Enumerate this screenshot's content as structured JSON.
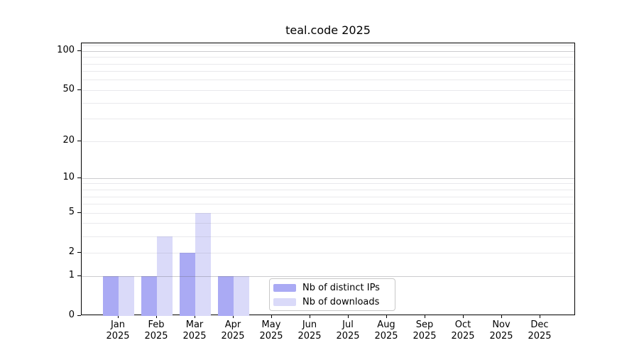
{
  "chart_data": {
    "type": "bar",
    "title": "teal.code 2025",
    "categories": [
      "Jan",
      "Feb",
      "Mar",
      "Apr",
      "May",
      "Jun",
      "Jul",
      "Aug",
      "Sep",
      "Oct",
      "Nov",
      "Dec"
    ],
    "year": "2025",
    "series": [
      {
        "name": "Nb of distinct IPs",
        "color": "#aaaaf4",
        "values": [
          1,
          1,
          2,
          1,
          0,
          0,
          0,
          0,
          0,
          0,
          0,
          0
        ]
      },
      {
        "name": "Nb of downloads",
        "color": "#dadaf9",
        "values": [
          1,
          3,
          5,
          1,
          0,
          0,
          0,
          0,
          0,
          0,
          0,
          0
        ]
      }
    ],
    "y_axis": {
      "scale": "log1p",
      "max": 115,
      "tick_labels": [
        0,
        1,
        2,
        5,
        10,
        20,
        50,
        100
      ],
      "gridlines_major": [
        1,
        10,
        100
      ],
      "gridlines_minor": [
        2,
        3,
        4,
        5,
        6,
        7,
        8,
        9,
        20,
        30,
        40,
        50,
        60,
        70,
        80,
        90,
        110
      ]
    },
    "xlabel": "",
    "ylabel": "",
    "grid": true,
    "legend_position": "bottom-center"
  }
}
